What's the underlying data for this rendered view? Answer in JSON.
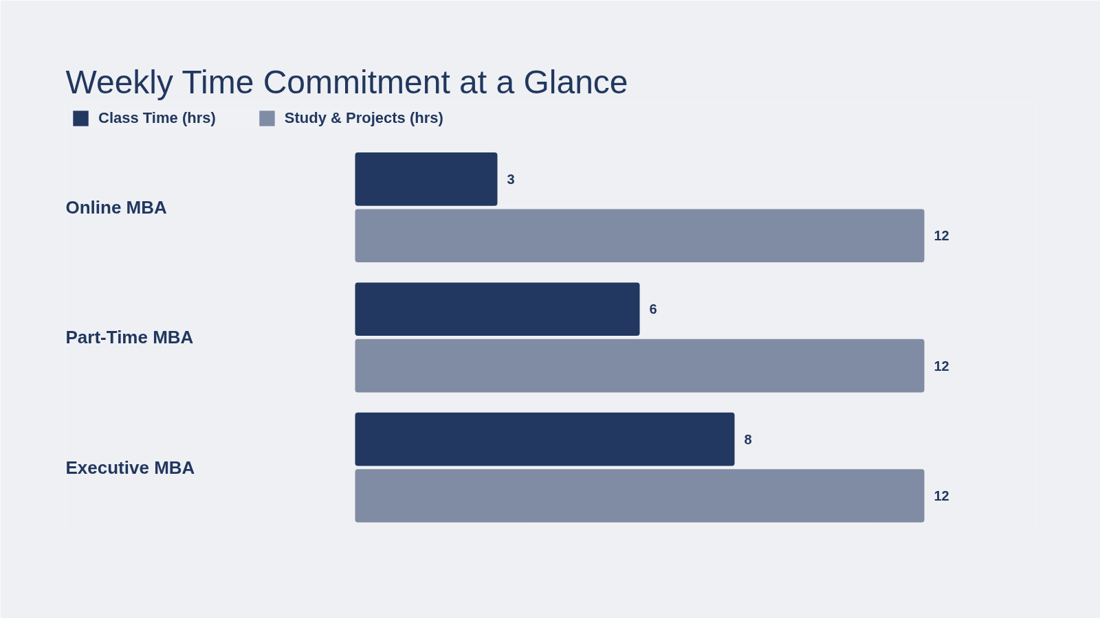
{
  "chart_data": {
    "type": "bar",
    "orientation": "horizontal",
    "title": "Weekly Time Commitment at a Glance",
    "categories": [
      "Online MBA",
      "Part-Time MBA",
      "Executive MBA"
    ],
    "series": [
      {
        "name": "Class Time (hrs)",
        "color": "#233860",
        "values": [
          3,
          6,
          8
        ]
      },
      {
        "name": "Study & Projects (hrs)",
        "color": "#808ca3",
        "values": [
          12,
          12,
          12
        ]
      }
    ],
    "data_labels": true,
    "legend": "top left",
    "grid": false
  }
}
